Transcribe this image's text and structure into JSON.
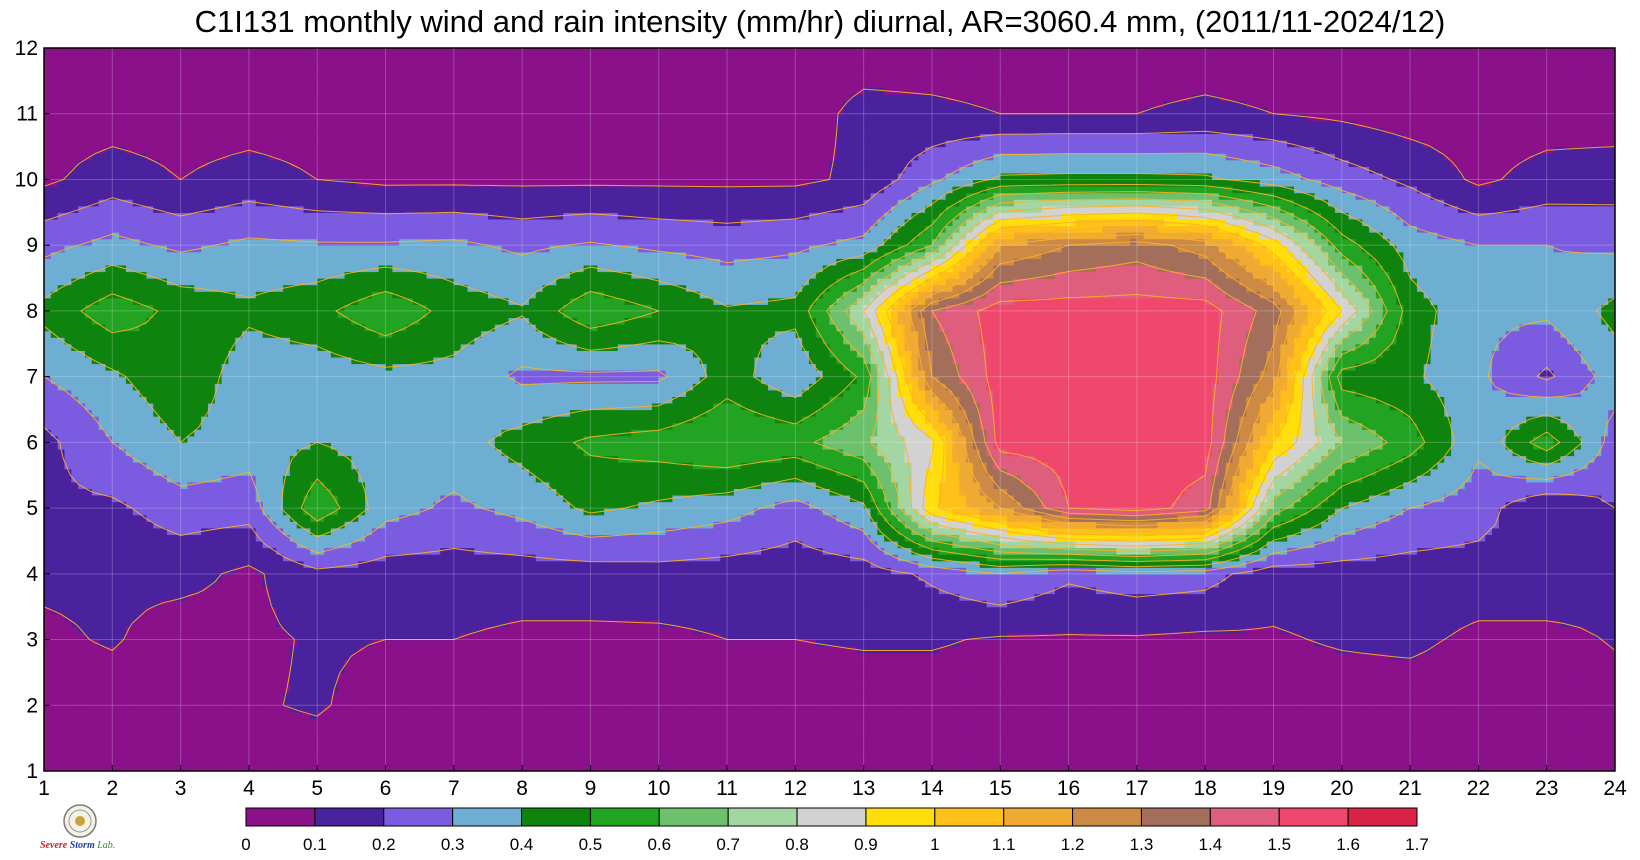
{
  "chart_data": {
    "type": "heatmap",
    "subtype": "filled-contour",
    "title": "C1I131 monthly wind and rain intensity (mm/hr) diurnal, AR=3060.4 mm, (2011/11-2024/12)",
    "xlabel": "",
    "ylabel": "",
    "x": [
      1,
      2,
      3,
      4,
      5,
      6,
      7,
      8,
      9,
      10,
      11,
      12,
      13,
      14,
      15,
      16,
      17,
      18,
      19,
      20,
      21,
      22,
      23,
      24
    ],
    "y": [
      1,
      2,
      3,
      4,
      5,
      6,
      7,
      8,
      9,
      10,
      11,
      12
    ],
    "xlim": [
      1,
      24
    ],
    "ylim": [
      1,
      12
    ],
    "grid": true,
    "z": [
      [
        0.05,
        0.05,
        0.05,
        0.05,
        0.05,
        0.05,
        0.05,
        0.05,
        0.08,
        0.1,
        0.08,
        0.05,
        0.05,
        0.05,
        0.05,
        0.05,
        0.05,
        0.05,
        0.05,
        0.05,
        0.05,
        0.05,
        0.05,
        0.05
      ],
      [
        0.05,
        0.05,
        0.07,
        0.09,
        0.11,
        0.06,
        0.06,
        0.05,
        0.05,
        0.05,
        0.06,
        0.05,
        0.05,
        0.05,
        0.05,
        0.05,
        0.05,
        0.05,
        0.05,
        0.05,
        0.05,
        0.05,
        0.05,
        0.05
      ],
      [
        0.08,
        0.11,
        0.05,
        0.08,
        0.11,
        0.1,
        0.1,
        0.08,
        0.08,
        0.08,
        0.1,
        0.1,
        0.11,
        0.11,
        0.09,
        0.09,
        0.09,
        0.08,
        0.09,
        0.11,
        0.12,
        0.08,
        0.06,
        0.11
      ],
      [
        0.12,
        0.12,
        0.13,
        0.08,
        0.17,
        0.15,
        0.15,
        0.15,
        0.15,
        0.16,
        0.15,
        0.14,
        0.15,
        0.22,
        0.3,
        0.22,
        0.26,
        0.24,
        0.14,
        0.15,
        0.15,
        0.15,
        0.2,
        0.14
      ],
      [
        0.18,
        0.18,
        0.25,
        0.24,
        0.58,
        0.34,
        0.28,
        0.33,
        0.42,
        0.38,
        0.34,
        0.26,
        0.38,
        0.98,
        1.2,
        1.5,
        1.55,
        1.45,
        0.65,
        0.4,
        0.3,
        0.25,
        0.1,
        0.2
      ],
      [
        0.17,
        0.3,
        0.4,
        0.35,
        0.4,
        0.35,
        0.36,
        0.44,
        0.52,
        0.55,
        0.6,
        0.57,
        0.68,
        0.88,
        1.55,
        1.55,
        1.55,
        1.55,
        1.0,
        0.7,
        0.55,
        0.32,
        0.56,
        0.25
      ],
      [
        0.3,
        0.38,
        0.48,
        0.34,
        0.34,
        0.37,
        0.37,
        0.28,
        0.28,
        0.28,
        0.45,
        0.32,
        0.52,
        1.3,
        1.55,
        1.55,
        1.55,
        1.55,
        1.25,
        0.45,
        0.42,
        0.32,
        0.18,
        0.35
      ],
      [
        0.43,
        0.56,
        0.47,
        0.42,
        0.47,
        0.58,
        0.46,
        0.41,
        0.58,
        0.5,
        0.41,
        0.43,
        0.8,
        1.4,
        1.55,
        1.55,
        1.55,
        1.55,
        1.35,
        0.9,
        0.45,
        0.32,
        0.32,
        0.43
      ],
      [
        0.27,
        0.33,
        0.28,
        0.32,
        0.31,
        0.31,
        0.32,
        0.28,
        0.31,
        0.28,
        0.26,
        0.28,
        0.33,
        0.6,
        1.2,
        1.3,
        1.35,
        1.25,
        0.95,
        0.55,
        0.35,
        0.3,
        0.3,
        0.28
      ],
      [
        0.08,
        0.15,
        0.1,
        0.14,
        0.1,
        0.08,
        0.08,
        0.08,
        0.08,
        0.08,
        0.08,
        0.08,
        0.12,
        0.28,
        0.42,
        0.43,
        0.43,
        0.42,
        0.35,
        0.25,
        0.18,
        0.08,
        0.14,
        0.15
      ],
      [
        0.05,
        0.05,
        0.05,
        0.05,
        0.05,
        0.05,
        0.05,
        0.05,
        0.05,
        0.05,
        0.05,
        0.05,
        0.13,
        0.12,
        0.1,
        0.1,
        0.1,
        0.12,
        0.1,
        0.08,
        0.05,
        0.05,
        0.05,
        0.05
      ],
      [
        0.05,
        0.05,
        0.05,
        0.1,
        0.05,
        0.05,
        0.05,
        0.05,
        0.05,
        0.05,
        0.05,
        0.05,
        0.05,
        0.05,
        0.05,
        0.05,
        0.05,
        0.05,
        0.05,
        0.05,
        0.05,
        0.05,
        0.05,
        0.05
      ]
    ],
    "colorbar": {
      "levels": [
        0,
        0.1,
        0.2,
        0.3,
        0.4,
        0.5,
        0.6,
        0.7,
        0.8,
        0.9,
        1,
        1.1,
        1.2,
        1.3,
        1.4,
        1.5,
        1.6,
        1.7
      ],
      "tick_labels": [
        "0",
        "0.1",
        "0.2",
        "0.3",
        "0.4",
        "0.5",
        "0.6",
        "0.7",
        "0.8",
        "0.9",
        "1",
        "1.1",
        "1.2",
        "1.3",
        "1.4",
        "1.5",
        "1.6",
        "1.7"
      ],
      "colors": [
        "#8b118b",
        "#4a229e",
        "#7b5ce0",
        "#6eaed2",
        "#0e840e",
        "#22a322",
        "#6dc16d",
        "#a3d6a3",
        "#d2d2d2",
        "#ffde0a",
        "#ffc01a",
        "#eeaa33",
        "#cd8a45",
        "#a36f5b",
        "#df5e7e",
        "#f0486c",
        "#d92346"
      ],
      "placement": "bottom"
    },
    "contour_line_color": "#ffb020"
  },
  "logo": {
    "icon": "lab-seal-icon",
    "words": [
      "Severe",
      "Storm",
      "Lab."
    ]
  }
}
